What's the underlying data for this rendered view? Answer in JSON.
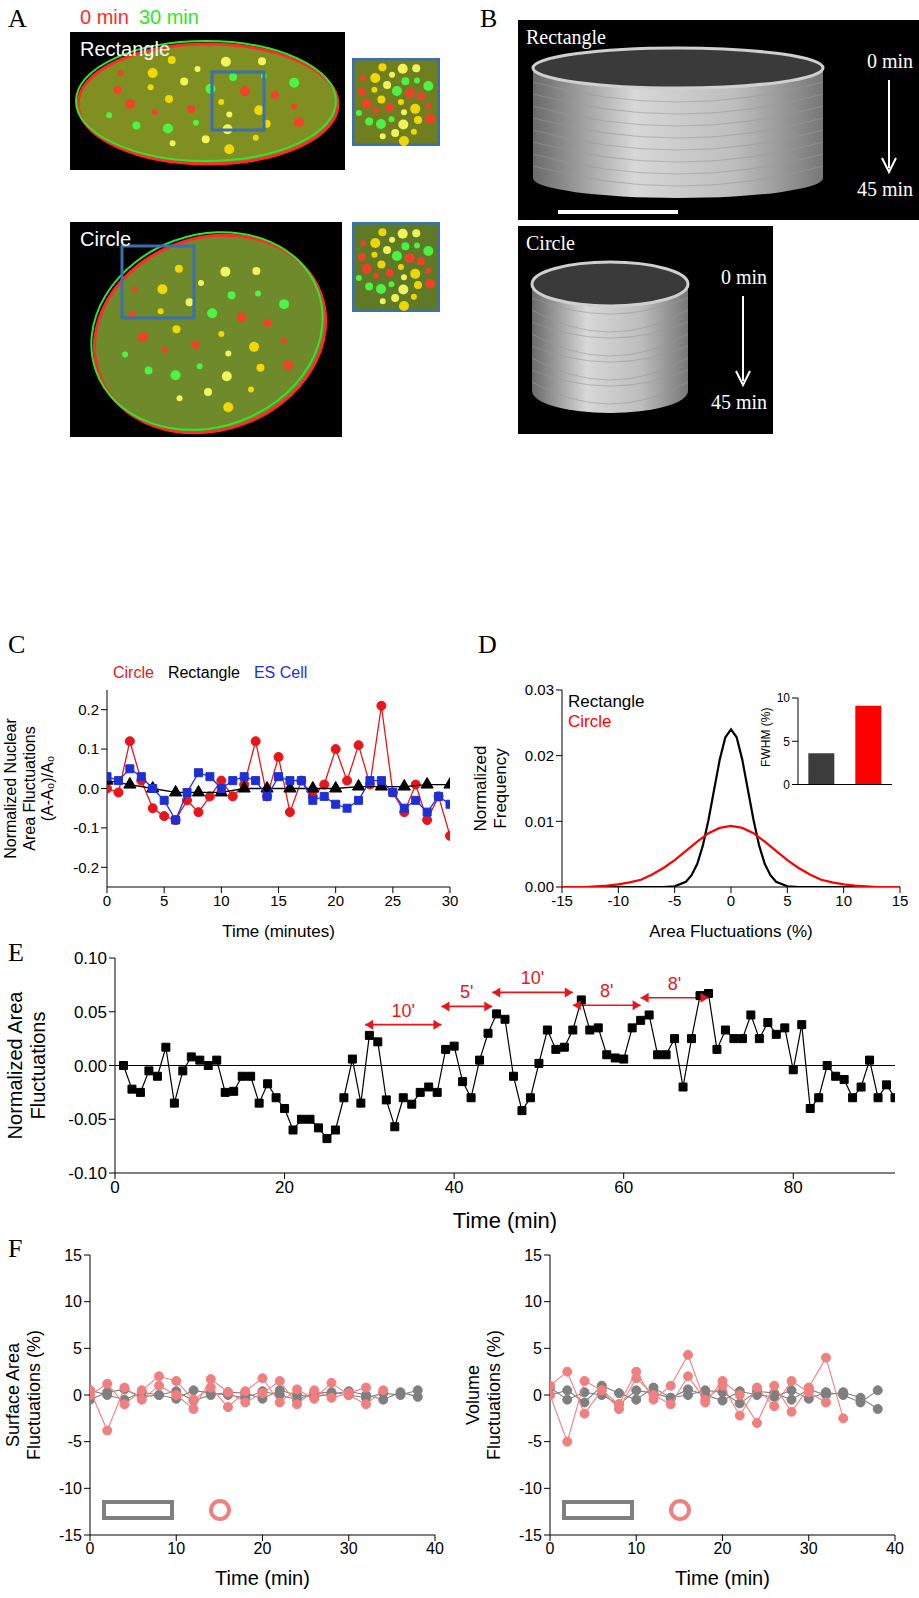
{
  "figure": {
    "A": {
      "letter": "A",
      "legend": [
        {
          "text": "0 min",
          "color": "#ff2a2a"
        },
        {
          "text": "30 min",
          "color": "#2ee62e"
        }
      ],
      "panels": [
        "Rectangle",
        "Circle"
      ]
    },
    "B": {
      "letter": "B",
      "panels": [
        {
          "label": "Rectangle",
          "start": "0 min",
          "end": "45 min"
        },
        {
          "label": "Circle",
          "start": "0 min",
          "end": "45 min"
        }
      ]
    }
  },
  "chart_data": [
    {
      "panel": "C",
      "type": "line",
      "xlabel": "Time (minutes)",
      "ylabel": "Normalized Nuclear Area Fluctuations (A-A₀)/A₀",
      "xlim": [
        0,
        30
      ],
      "xticks": [
        0,
        5,
        10,
        15,
        20,
        25,
        30
      ],
      "ylim": [
        -0.25,
        0.25
      ],
      "yticks": [
        -0.2,
        -0.1,
        {
          "value": 0,
          "label": "0.0"
        },
        0.1,
        0.2
      ],
      "legend": "top",
      "series": [
        {
          "name": "Circle",
          "color": "#e8161b",
          "marker": "circle",
          "x": [
            0,
            1,
            2,
            3,
            4,
            5,
            6,
            7,
            8,
            9,
            10,
            11,
            12,
            13,
            14,
            15,
            16,
            17,
            18,
            19,
            20,
            21,
            22,
            23,
            24,
            25,
            26,
            27,
            28,
            29,
            30
          ],
          "values": [
            0.0,
            -0.01,
            0.12,
            0.02,
            -0.05,
            -0.07,
            -0.08,
            -0.03,
            -0.06,
            -0.02,
            0.02,
            -0.02,
            0.01,
            0.12,
            -0.02,
            0.08,
            -0.06,
            0.02,
            -0.02,
            0.01,
            0.1,
            0.02,
            0.11,
            0.01,
            0.21,
            -0.01,
            -0.06,
            0.01,
            -0.08,
            -0.02,
            -0.12
          ]
        },
        {
          "name": "Rectangle",
          "color": "#000000",
          "marker": "triangle",
          "x": [
            0,
            2,
            4,
            6,
            8,
            10,
            12,
            14,
            16,
            18,
            20,
            22,
            24,
            26,
            28,
            30
          ],
          "values": [
            0.02,
            0.01,
            0.0,
            -0.01,
            -0.01,
            -0.01,
            0.0,
            0.0,
            0.0,
            0.0,
            0.0,
            0.005,
            0.005,
            0.005,
            0.01,
            0.01
          ]
        },
        {
          "name": "ES Cell",
          "color": "#1f2fd6",
          "marker": "square",
          "x": [
            0,
            1,
            2,
            3,
            4,
            5,
            6,
            7,
            8,
            9,
            10,
            11,
            12,
            13,
            14,
            15,
            16,
            17,
            18,
            19,
            20,
            21,
            22,
            23,
            24,
            25,
            26,
            27,
            28,
            29,
            30
          ],
          "values": [
            0.03,
            0.02,
            0.05,
            0.03,
            0.0,
            -0.03,
            -0.08,
            -0.01,
            0.04,
            0.03,
            0.0,
            0.02,
            0.03,
            0.02,
            -0.02,
            0.03,
            0.02,
            0.02,
            -0.03,
            -0.02,
            -0.04,
            -0.05,
            -0.03,
            0.02,
            0.02,
            -0.01,
            -0.05,
            -0.03,
            -0.06,
            -0.02,
            -0.04
          ]
        }
      ]
    },
    {
      "panel": "D",
      "type": "line",
      "xlabel": "Area Fluctuations (%)",
      "ylabel": "Normalized Frequency",
      "xlim": [
        -15,
        15
      ],
      "xticks": [
        -15,
        -10,
        -5,
        0,
        5,
        10,
        15
      ],
      "ylim": [
        0,
        0.03
      ],
      "yticks": [
        {
          "value": 0,
          "label": "0.00"
        },
        {
          "value": 0.01,
          "label": "0.01"
        },
        {
          "value": 0.02,
          "label": "0.02"
        },
        {
          "value": 0.03,
          "label": "0.03"
        }
      ],
      "legend": "upper left",
      "series": [
        {
          "name": "Rectangle",
          "color": "#000000",
          "marker": "none",
          "x": [
            -15,
            -6,
            -5,
            -4,
            -3.5,
            -3,
            -2.5,
            -2,
            -1.5,
            -1,
            -0.5,
            0,
            0.5,
            1,
            1.5,
            2,
            2.5,
            3,
            3.5,
            4,
            5,
            6,
            15
          ],
          "values": [
            0,
            0,
            0.0001,
            0.0008,
            0.0018,
            0.0035,
            0.0063,
            0.0102,
            0.0148,
            0.0194,
            0.0228,
            0.024,
            0.0228,
            0.0194,
            0.0148,
            0.0102,
            0.0063,
            0.0035,
            0.0018,
            0.0008,
            0.0001,
            0,
            0
          ]
        },
        {
          "name": "Circle",
          "color": "#ff0000",
          "marker": "none",
          "x": [
            -15,
            -14,
            -13,
            -12,
            -11,
            -10,
            -9,
            -8,
            -7,
            -6,
            -5,
            -4,
            -3,
            -2,
            -1,
            0,
            1,
            2,
            3,
            4,
            5,
            6,
            7,
            8,
            9,
            10,
            11,
            12,
            13,
            14,
            15
          ],
          "values": [
            0,
            0,
            0,
            0.0001,
            0.0002,
            0.0004,
            0.0007,
            0.0011,
            0.0019,
            0.0029,
            0.0041,
            0.0055,
            0.0069,
            0.0082,
            0.009,
            0.0093,
            0.009,
            0.0082,
            0.0069,
            0.0055,
            0.0041,
            0.0029,
            0.0019,
            0.0011,
            0.0007,
            0.0004,
            0.0002,
            0.0001,
            0,
            0,
            0
          ]
        }
      ]
    },
    {
      "type": "bar",
      "ylabel": "FWHM (%)",
      "categories": [
        null,
        null
      ],
      "values": [
        3.6,
        9.1
      ],
      "colors": [
        "#3c3c3c",
        "#ff0000"
      ],
      "ylim": [
        0,
        10
      ],
      "yticks": [
        0,
        5,
        10
      ],
      "tick_labels": "y"
    },
    {
      "panel": "E",
      "type": "line",
      "xlabel": "Time (min)",
      "ylabel": "Normalized Area Fluctuations",
      "xlim": [
        0,
        92
      ],
      "xticks": [
        0,
        20,
        40,
        60,
        80
      ],
      "ylim": [
        -0.1,
        0.1
      ],
      "yticks": [
        {
          "value": -0.1,
          "label": "-0.10"
        },
        {
          "value": -0.05,
          "label": "-0.05"
        },
        {
          "value": 0,
          "label": "0.00"
        },
        {
          "value": 0.05,
          "label": "0.05"
        },
        {
          "value": 0.1,
          "label": "0.10"
        }
      ],
      "reference_line": 0,
      "annotations": [
        {
          "text": "10'",
          "x": [
            29.5,
            38.5
          ],
          "y": 0.038,
          "color": "#e8161b"
        },
        {
          "text": "5'",
          "x": [
            38.5,
            44.5
          ],
          "y": 0.055,
          "color": "#e8161b"
        },
        {
          "text": "10'",
          "x": [
            44.5,
            54
          ],
          "y": 0.068,
          "color": "#e8161b"
        },
        {
          "text": "8'",
          "x": [
            54,
            62
          ],
          "y": 0.056,
          "color": "#e8161b"
        },
        {
          "text": "8'",
          "x": [
            62,
            70
          ],
          "y": 0.063,
          "color": "#e8161b"
        }
      ],
      "series": [
        {
          "color": "#000000",
          "marker": "square",
          "x": [
            1,
            2,
            3,
            4,
            5,
            6,
            7,
            8,
            9,
            10,
            11,
            12,
            13,
            14,
            15,
            16,
            17,
            18,
            19,
            20,
            21,
            22,
            23,
            24,
            25,
            26,
            27,
            28,
            29,
            30,
            31,
            32,
            33,
            34,
            35,
            36,
            37,
            38,
            39,
            40,
            41,
            42,
            43,
            44,
            45,
            46,
            47,
            48,
            49,
            50,
            51,
            52,
            53,
            54,
            55,
            56,
            57,
            58,
            59,
            60,
            61,
            62,
            63,
            64,
            65,
            66,
            67,
            68,
            69,
            70,
            71,
            72,
            73,
            74,
            75,
            76,
            77,
            78,
            79,
            80,
            81,
            82,
            83,
            84,
            85,
            86,
            87,
            88,
            89,
            90,
            91,
            92
          ],
          "values": [
            0.0,
            -0.022,
            -0.025,
            -0.005,
            -0.01,
            0.017,
            -0.035,
            -0.005,
            0.008,
            0.005,
            0.0,
            0.005,
            -0.025,
            -0.024,
            -0.01,
            -0.01,
            -0.035,
            -0.017,
            -0.03,
            -0.04,
            -0.06,
            -0.05,
            -0.05,
            -0.058,
            -0.068,
            -0.06,
            -0.03,
            0.006,
            -0.035,
            0.028,
            0.022,
            -0.032,
            -0.057,
            -0.03,
            -0.036,
            -0.025,
            -0.02,
            -0.025,
            0.015,
            0.018,
            -0.015,
            -0.03,
            0.005,
            0.03,
            0.048,
            0.043,
            -0.01,
            -0.042,
            -0.03,
            0.002,
            0.033,
            0.015,
            0.017,
            0.033,
            0.061,
            0.033,
            0.035,
            0.01,
            0.007,
            0.006,
            0.035,
            0.042,
            0.047,
            0.01,
            0.01,
            0.025,
            -0.02,
            0.025,
            0.065,
            0.067,
            0.015,
            0.033,
            0.025,
            0.025,
            0.047,
            0.025,
            0.04,
            0.029,
            0.035,
            -0.004,
            0.038,
            -0.04,
            -0.03,
            0.0,
            -0.01,
            -0.013,
            -0.03,
            -0.02,
            0.005,
            -0.03,
            -0.018,
            -0.03
          ]
        }
      ]
    },
    {
      "panel": "F",
      "type": "line",
      "xlabel": "Time (min)",
      "ylabel": "Surface Area Fluctuations (%)",
      "xlim": [
        0,
        40
      ],
      "xticks": [
        0,
        10,
        20,
        30,
        40
      ],
      "ylim": [
        -15,
        15
      ],
      "yticks": [
        -15,
        -10,
        -5,
        0,
        5,
        10,
        15
      ],
      "legend": "lower left",
      "series": [
        {
          "color": "#7f7f7f",
          "marker": "circle",
          "x": [
            0,
            2,
            4,
            6,
            8,
            10,
            12,
            14,
            16,
            18,
            20,
            22,
            24,
            26,
            28,
            30,
            32,
            34,
            36,
            38
          ],
          "values": [
            0.5,
            0,
            -0.5,
            0.3,
            0,
            -0.4,
            0.5,
            0.2,
            0,
            -0.3,
            0.4,
            0,
            -0.5,
            0.2,
            0.3,
            0,
            -0.3,
            0.2,
            0,
            0.5
          ]
        },
        {
          "color": "#7f7f7f",
          "marker": "circle",
          "x": [
            0,
            2,
            4,
            6,
            8,
            10,
            12,
            14,
            16,
            18,
            20,
            22,
            24,
            26,
            28,
            30,
            32,
            34,
            36,
            38
          ],
          "values": [
            -0.5,
            0.3,
            0.6,
            -0.2,
            0,
            0.4,
            -0.6,
            0,
            0.3,
            0.2,
            -0.4,
            0.5,
            0,
            -0.2,
            0.1,
            0.4,
            0,
            -0.5,
            0.3,
            -0.2
          ]
        },
        {
          "color": "#f08080",
          "marker": "circle",
          "x": [
            0,
            2,
            4,
            6,
            8,
            10,
            12,
            14,
            16,
            18,
            20,
            22,
            24,
            26,
            28,
            30,
            32,
            34
          ],
          "values": [
            0,
            1.2,
            -1,
            0.5,
            2,
            1.5,
            -0.5,
            0.8,
            -1.3,
            0.4,
            1.8,
            -0.8,
            0.6,
            -0.4,
            1.3,
            0,
            -1,
            0.5
          ]
        },
        {
          "color": "#f08080",
          "marker": "circle",
          "x": [
            0,
            2,
            4,
            6,
            8,
            10,
            12,
            14,
            16,
            18,
            20,
            22,
            24,
            26,
            28,
            30,
            32
          ],
          "values": [
            0.5,
            -3.8,
            0.8,
            -0.5,
            1,
            0,
            -1.5,
            1.7,
            0.3,
            -0.8,
            0.2,
            1.5,
            -1,
            0.5,
            -0.3,
            0.2,
            0.8
          ]
        }
      ]
    },
    {
      "type": "line",
      "xlabel": "Time (min)",
      "ylabel": "Volume Fluctuations (%)",
      "xlim": [
        0,
        40
      ],
      "xticks": [
        0,
        10,
        20,
        30,
        40
      ],
      "ylim": [
        -15,
        15
      ],
      "yticks": [
        -15,
        -10,
        -5,
        0,
        5,
        10,
        15
      ],
      "legend": "lower left",
      "series": [
        {
          "color": "#7f7f7f",
          "marker": "circle",
          "x": [
            0,
            2,
            4,
            6,
            8,
            10,
            12,
            14,
            16,
            18,
            20,
            22,
            24,
            26,
            28,
            30,
            32,
            34,
            36,
            38
          ],
          "values": [
            0.8,
            -0.5,
            0.3,
            0,
            -1,
            0.5,
            0.2,
            -0.3,
            0.6,
            0,
            -0.6,
            0.4,
            0,
            -0.2,
            0.5,
            -0.4,
            0.3,
            0,
            -0.8,
            0.5
          ]
        },
        {
          "color": "#7f7f7f",
          "marker": "circle",
          "x": [
            0,
            2,
            4,
            6,
            8,
            10,
            12,
            14,
            16,
            18,
            20,
            22,
            24,
            26,
            28,
            30,
            32,
            34,
            36,
            38
          ],
          "values": [
            0,
            0.5,
            -0.8,
            1,
            0.2,
            -0.5,
            0.8,
            -0.3,
            0,
            0.5,
            0.3,
            -0.9,
            0.4,
            0.2,
            -0.5,
            0.6,
            0,
            0.3,
            -0.3,
            -1.5
          ]
        },
        {
          "color": "#f08080",
          "marker": "circle",
          "x": [
            0,
            2,
            4,
            6,
            8,
            10,
            12,
            14,
            16,
            18,
            20,
            22,
            24,
            26,
            28,
            30,
            32,
            34
          ],
          "values": [
            0,
            -5,
            1.5,
            0.5,
            -1,
            2.5,
            -0.5,
            1,
            4.3,
            -0.8,
            1.5,
            0,
            -3,
            1,
            -1.8,
            0.8,
            4,
            -2.5
          ]
        },
        {
          "color": "#f08080",
          "marker": "circle",
          "x": [
            0,
            2,
            4,
            6,
            8,
            10,
            12,
            14,
            16,
            18,
            20,
            22,
            24,
            26,
            28,
            30,
            32
          ],
          "values": [
            1,
            2.5,
            -2,
            0.5,
            -1.5,
            1.8,
            0,
            -1,
            2,
            -0.5,
            1,
            -2.2,
            0.8,
            -1.2,
            1.5,
            0.3,
            -0.8
          ]
        }
      ]
    }
  ]
}
